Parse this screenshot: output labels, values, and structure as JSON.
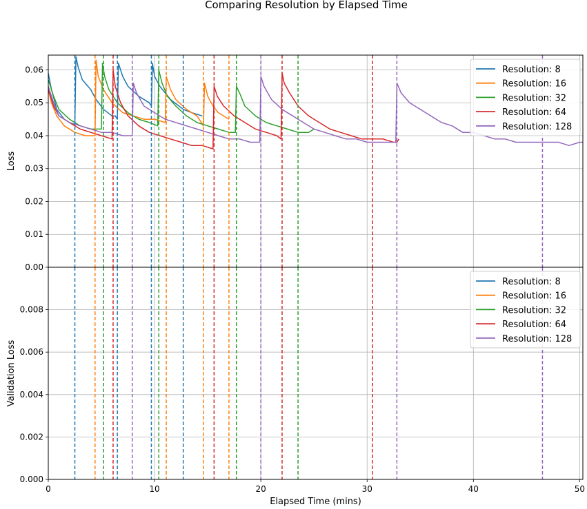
{
  "figure_title": "Comparing Resolution by Elapsed Time",
  "chart_data": [
    {
      "type": "line",
      "title": "",
      "xlabel": "",
      "ylabel": "Loss",
      "xlim": [
        0,
        50.3
      ],
      "ylim": [
        0,
        0.0645
      ],
      "xticks": [
        0,
        10,
        20,
        30,
        40,
        50
      ],
      "xtick_labels": [
        "0",
        "10",
        "20",
        "30",
        "40",
        "50"
      ],
      "yticks": [
        0,
        0.01,
        0.02,
        0.03,
        0.04,
        0.05,
        0.06
      ],
      "ytick_labels": [
        "0.00",
        "0.01",
        "0.02",
        "0.03",
        "0.04",
        "0.05",
        "0.06"
      ],
      "grid": true,
      "legend_position": "upper right",
      "series": [
        {
          "name": "Resolution: 8",
          "color": "#1f77b4",
          "x": [
            0,
            0.3,
            0.8,
            1.5,
            2.5,
            2.6,
            2.8,
            3.2,
            4.0,
            4.5,
            5.2,
            6.0,
            6.3,
            6.5,
            6.6,
            7.0,
            7.5,
            8.5,
            9.5,
            9.7,
            9.8,
            10.0,
            10.5,
            11.5,
            12.7,
            13.5,
            14.5
          ],
          "y": [
            0.059,
            0.054,
            0.048,
            0.045,
            0.043,
            0.064,
            0.061,
            0.057,
            0.054,
            0.051,
            0.048,
            0.046,
            0.046,
            0.045,
            0.062,
            0.058,
            0.055,
            0.052,
            0.05,
            0.049,
            0.062,
            0.058,
            0.055,
            0.051,
            0.048,
            0.047,
            0.046
          ]
        },
        {
          "name": "Resolution: 16",
          "color": "#ff7f0e",
          "x": [
            0,
            0.3,
            0.8,
            1.5,
            2.5,
            3.5,
            4.4,
            4.5,
            4.7,
            5.2,
            6.0,
            7.0,
            8.0,
            9.0,
            10.0,
            11.0,
            11.1,
            11.5,
            12.0,
            13.0,
            14.0,
            14.6,
            14.7,
            15.0,
            15.5,
            16.0,
            17.0
          ],
          "y": [
            0.054,
            0.05,
            0.046,
            0.043,
            0.041,
            0.04,
            0.04,
            0.063,
            0.058,
            0.054,
            0.05,
            0.047,
            0.046,
            0.045,
            0.045,
            0.044,
            0.058,
            0.054,
            0.051,
            0.048,
            0.046,
            0.043,
            0.056,
            0.052,
            0.049,
            0.047,
            0.045
          ]
        },
        {
          "name": "Resolution: 32",
          "color": "#2ca02c",
          "x": [
            0,
            0.5,
            1.0,
            2.0,
            3.0,
            4.0,
            5.0,
            5.1,
            5.3,
            5.7,
            6.5,
            7.5,
            8.5,
            9.5,
            10.3,
            10.4,
            10.7,
            11.2,
            12.0,
            13.0,
            14.0,
            15.0,
            16.0,
            17.0,
            17.6,
            17.7,
            18.0,
            18.5,
            19.5,
            20.5,
            21.5,
            22.5,
            23.5,
            24.5,
            25.0
          ],
          "y": [
            0.057,
            0.052,
            0.048,
            0.045,
            0.043,
            0.042,
            0.042,
            0.062,
            0.058,
            0.054,
            0.05,
            0.047,
            0.045,
            0.044,
            0.043,
            0.06,
            0.056,
            0.052,
            0.049,
            0.046,
            0.044,
            0.043,
            0.042,
            0.041,
            0.041,
            0.055,
            0.053,
            0.049,
            0.046,
            0.044,
            0.043,
            0.042,
            0.041,
            0.041,
            0.042
          ]
        },
        {
          "name": "Resolution: 64",
          "color": "#d62728",
          "x": [
            0,
            0.5,
            1.0,
            2.0,
            3.0,
            4.0,
            5.0,
            6.0,
            6.1,
            6.3,
            6.8,
            7.5,
            8.5,
            9.5,
            10.5,
            11.5,
            12.5,
            13.5,
            14.5,
            15.5,
            15.6,
            15.9,
            16.5,
            17.5,
            18.5,
            19.5,
            20.5,
            21.5,
            21.9,
            22.0,
            22.2,
            22.7,
            23.5,
            24.5,
            25.5,
            26.5,
            27.5,
            28.5,
            29.5,
            30.5,
            31.5,
            32.5,
            32.8,
            33.0
          ],
          "y": [
            0.054,
            0.049,
            0.046,
            0.044,
            0.042,
            0.041,
            0.04,
            0.039,
            0.06,
            0.055,
            0.05,
            0.046,
            0.043,
            0.041,
            0.04,
            0.039,
            0.038,
            0.037,
            0.037,
            0.036,
            0.055,
            0.052,
            0.049,
            0.046,
            0.044,
            0.042,
            0.041,
            0.04,
            0.039,
            0.059,
            0.056,
            0.053,
            0.049,
            0.046,
            0.044,
            0.042,
            0.041,
            0.04,
            0.039,
            0.039,
            0.039,
            0.038,
            0.038,
            0.039
          ]
        },
        {
          "name": "Resolution: 128",
          "color": "#9467bd",
          "x": [
            0,
            0.5,
            1.0,
            2.0,
            3.0,
            4.0,
            5.0,
            6.0,
            7.0,
            7.9,
            8.0,
            8.3,
            9.0,
            10.0,
            11.0,
            12.0,
            13.0,
            14.0,
            15.0,
            16.0,
            17.0,
            18.0,
            19.0,
            19.9,
            20.0,
            20.3,
            21.0,
            22.0,
            23.0,
            24.0,
            25.0,
            26.0,
            27.0,
            28.0,
            29.0,
            30.0,
            31.0,
            32.0,
            32.7,
            32.8,
            33.2,
            34.0,
            35.0,
            36.0,
            37.0,
            38.0,
            39.0,
            40.0,
            41.0,
            42.0,
            43.0,
            44.0,
            45.0,
            46.0,
            47.0,
            48.0,
            49.0,
            50.0,
            50.3
          ],
          "y": [
            0.055,
            0.05,
            0.046,
            0.044,
            0.043,
            0.042,
            0.041,
            0.041,
            0.04,
            0.04,
            0.056,
            0.053,
            0.049,
            0.047,
            0.045,
            0.044,
            0.043,
            0.042,
            0.041,
            0.04,
            0.039,
            0.039,
            0.038,
            0.038,
            0.058,
            0.055,
            0.051,
            0.048,
            0.046,
            0.044,
            0.042,
            0.041,
            0.04,
            0.039,
            0.039,
            0.038,
            0.038,
            0.038,
            0.038,
            0.056,
            0.053,
            0.05,
            0.048,
            0.046,
            0.044,
            0.043,
            0.041,
            0.041,
            0.04,
            0.039,
            0.039,
            0.038,
            0.038,
            0.038,
            0.038,
            0.038,
            0.037,
            0.038,
            0.038
          ]
        }
      ],
      "vlines": [
        {
          "x": 2.5,
          "color": "#1f77b4"
        },
        {
          "x": 6.5,
          "color": "#1f77b4"
        },
        {
          "x": 9.7,
          "color": "#1f77b4"
        },
        {
          "x": 12.7,
          "color": "#1f77b4"
        },
        {
          "x": 4.4,
          "color": "#ff7f0e"
        },
        {
          "x": 11.1,
          "color": "#ff7f0e"
        },
        {
          "x": 14.6,
          "color": "#ff7f0e"
        },
        {
          "x": 17.0,
          "color": "#ff7f0e"
        },
        {
          "x": 5.2,
          "color": "#2ca02c"
        },
        {
          "x": 10.4,
          "color": "#2ca02c"
        },
        {
          "x": 17.7,
          "color": "#2ca02c"
        },
        {
          "x": 23.5,
          "color": "#2ca02c"
        },
        {
          "x": 6.1,
          "color": "#d62728"
        },
        {
          "x": 15.6,
          "color": "#d62728"
        },
        {
          "x": 22.0,
          "color": "#d62728"
        },
        {
          "x": 30.5,
          "color": "#d62728"
        },
        {
          "x": 7.9,
          "color": "#9467bd"
        },
        {
          "x": 20.0,
          "color": "#9467bd"
        },
        {
          "x": 32.8,
          "color": "#9467bd"
        },
        {
          "x": 46.5,
          "color": "#9467bd"
        }
      ]
    },
    {
      "type": "line",
      "title": "",
      "xlabel": "Elapsed Time (mins)",
      "ylabel": "Validation Loss",
      "xlim": [
        0,
        50.3
      ],
      "ylim": [
        0,
        0.01
      ],
      "xticks": [
        0,
        10,
        20,
        30,
        40,
        50
      ],
      "xtick_labels": [
        "0",
        "10",
        "20",
        "30",
        "40",
        "50"
      ],
      "yticks": [
        0,
        0.002,
        0.004,
        0.006,
        0.008
      ],
      "ytick_labels": [
        "0.000",
        "0.002",
        "0.004",
        "0.006",
        "0.008"
      ],
      "grid": true,
      "legend_position": "upper right",
      "series": [
        {
          "name": "Resolution: 8",
          "color": "#1f77b4",
          "x": [],
          "y": []
        },
        {
          "name": "Resolution: 16",
          "color": "#ff7f0e",
          "x": [],
          "y": []
        },
        {
          "name": "Resolution: 32",
          "color": "#2ca02c",
          "x": [],
          "y": []
        },
        {
          "name": "Resolution: 64",
          "color": "#d62728",
          "x": [],
          "y": []
        },
        {
          "name": "Resolution: 128",
          "color": "#9467bd",
          "x": [],
          "y": []
        }
      ],
      "vlines": [
        {
          "x": 2.5,
          "color": "#1f77b4"
        },
        {
          "x": 6.5,
          "color": "#1f77b4"
        },
        {
          "x": 9.7,
          "color": "#1f77b4"
        },
        {
          "x": 12.7,
          "color": "#1f77b4"
        },
        {
          "x": 4.4,
          "color": "#ff7f0e"
        },
        {
          "x": 11.1,
          "color": "#ff7f0e"
        },
        {
          "x": 14.6,
          "color": "#ff7f0e"
        },
        {
          "x": 17.0,
          "color": "#ff7f0e"
        },
        {
          "x": 5.2,
          "color": "#2ca02c"
        },
        {
          "x": 10.4,
          "color": "#2ca02c"
        },
        {
          "x": 17.7,
          "color": "#2ca02c"
        },
        {
          "x": 23.5,
          "color": "#2ca02c"
        },
        {
          "x": 6.1,
          "color": "#d62728"
        },
        {
          "x": 15.6,
          "color": "#d62728"
        },
        {
          "x": 22.0,
          "color": "#d62728"
        },
        {
          "x": 30.5,
          "color": "#d62728"
        },
        {
          "x": 7.9,
          "color": "#9467bd"
        },
        {
          "x": 20.0,
          "color": "#9467bd"
        },
        {
          "x": 32.8,
          "color": "#9467bd"
        },
        {
          "x": 46.5,
          "color": "#9467bd"
        }
      ]
    }
  ]
}
